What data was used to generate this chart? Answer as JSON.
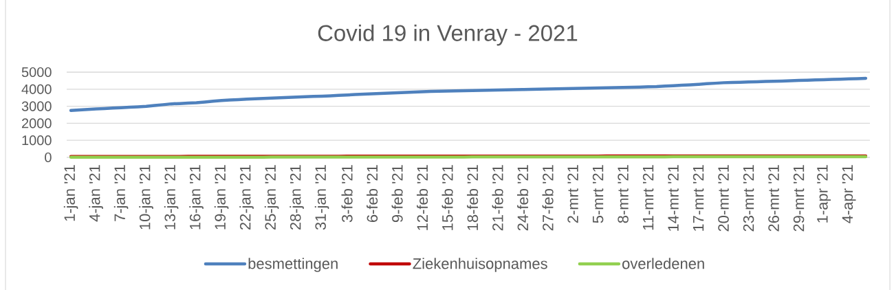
{
  "chart_data": {
    "type": "line",
    "title": "Covid 19 in Venray - 2021",
    "categories": [
      "1-jan '21",
      null,
      null,
      "4-jan '21",
      null,
      null,
      "7-jan '21",
      null,
      null,
      "10-jan '21",
      null,
      null,
      "13-jan '21",
      null,
      null,
      "16-jan '21",
      null,
      null,
      "19-jan '21",
      null,
      null,
      "22-jan '21",
      null,
      null,
      "25-jan '21",
      null,
      null,
      "28-jan '21",
      null,
      null,
      "31-jan '21",
      null,
      null,
      "3-feb '21",
      null,
      null,
      "6-feb '21",
      null,
      null,
      "9-feb '21",
      null,
      null,
      "12-feb '21",
      null,
      null,
      "15-feb '21",
      null,
      null,
      "18-feb '21",
      null,
      null,
      "21-feb '21",
      null,
      null,
      "24-feb '21",
      null,
      null,
      "27-feb '21",
      null,
      null,
      "2-mrt '21",
      null,
      null,
      "5-mrt '21",
      null,
      null,
      "8-mrt '21",
      null,
      null,
      "11-mrt '21",
      null,
      null,
      "14-mrt '21",
      null,
      null,
      "17-mrt '21",
      null,
      null,
      "20-mrt '21",
      null,
      null,
      "23-mrt '21",
      null,
      null,
      "26-mrt '21",
      null,
      null,
      "29-mrt '21",
      null,
      null,
      "1-apr '21",
      null,
      null,
      "4-apr '21",
      null,
      null
    ],
    "series": [
      {
        "name": "besmettingen",
        "color": "#4f81bd",
        "values": [
          2750,
          2780,
          2810,
          2840,
          2860,
          2890,
          2910,
          2940,
          2960,
          2990,
          3040,
          3090,
          3140,
          3160,
          3190,
          3210,
          3250,
          3300,
          3340,
          3370,
          3390,
          3420,
          3440,
          3460,
          3480,
          3500,
          3520,
          3540,
          3560,
          3580,
          3590,
          3610,
          3640,
          3660,
          3690,
          3710,
          3730,
          3750,
          3770,
          3790,
          3810,
          3830,
          3850,
          3870,
          3880,
          3890,
          3900,
          3910,
          3920,
          3930,
          3940,
          3950,
          3960,
          3970,
          3980,
          3990,
          4000,
          4010,
          4020,
          4030,
          4040,
          4050,
          4060,
          4070,
          4080,
          4090,
          4100,
          4110,
          4120,
          4140,
          4150,
          4180,
          4200,
          4230,
          4250,
          4280,
          4320,
          4350,
          4380,
          4400,
          4410,
          4430,
          4440,
          4460,
          4470,
          4480,
          4500,
          4520,
          4530,
          4550,
          4560,
          4580,
          4590,
          4610,
          4620,
          4640
        ]
      },
      {
        "name": "Ziekenhuisopnames",
        "color": "#c00000",
        "values": [
          50,
          50,
          50,
          50,
          50,
          50,
          50,
          50,
          50,
          50,
          50,
          50,
          50,
          50,
          60,
          60,
          60,
          60,
          60,
          60,
          60,
          60,
          60,
          60,
          60,
          60,
          60,
          60,
          60,
          60,
          60,
          60,
          60,
          70,
          70,
          70,
          70,
          70,
          70,
          70,
          70,
          70,
          70,
          70,
          70,
          70,
          70,
          70,
          70,
          70,
          70,
          70,
          70,
          70,
          70,
          70,
          70,
          70,
          70,
          70,
          70,
          70,
          70,
          70,
          80,
          80,
          80,
          80,
          80,
          80,
          80,
          80,
          80,
          80,
          80,
          80,
          80,
          80,
          80,
          80,
          80,
          80,
          80,
          80,
          80,
          80,
          80,
          80,
          80,
          80,
          80,
          80,
          80,
          80,
          80,
          80
        ]
      },
      {
        "name": "overledenen",
        "color": "#92d050",
        "values": [
          10,
          10,
          10,
          10,
          10,
          10,
          10,
          10,
          10,
          10,
          10,
          10,
          10,
          10,
          10,
          10,
          10,
          10,
          10,
          10,
          10,
          10,
          10,
          10,
          20,
          20,
          20,
          20,
          20,
          20,
          20,
          20,
          20,
          20,
          20,
          20,
          20,
          20,
          20,
          20,
          20,
          20,
          20,
          20,
          20,
          20,
          20,
          20,
          30,
          30,
          30,
          30,
          30,
          30,
          30,
          30,
          30,
          30,
          30,
          30,
          30,
          30,
          30,
          30,
          30,
          30,
          30,
          30,
          30,
          30,
          30,
          30,
          40,
          40,
          40,
          40,
          40,
          40,
          40,
          40,
          40,
          40,
          40,
          40,
          40,
          40,
          40,
          40,
          40,
          40,
          40,
          40,
          40,
          40,
          40,
          40
        ]
      }
    ],
    "ylim": [
      0,
      5000
    ],
    "yticks": [
      0,
      1000,
      2000,
      3000,
      4000,
      5000
    ],
    "grid": "y",
    "legend": "bottom",
    "marker": "none",
    "line_style": "solid"
  }
}
